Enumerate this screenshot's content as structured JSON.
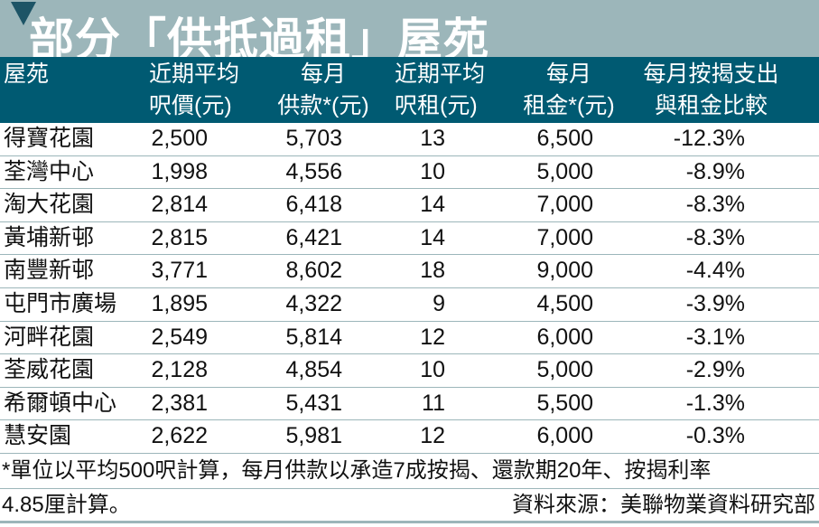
{
  "title": "部分「供抵過租」屋苑",
  "colors": {
    "title_band": "#9cb6ba",
    "header_band": "#005a72",
    "triangle": "#1d5466"
  },
  "headers": [
    [
      "屋苑",
      ""
    ],
    [
      "近期平均",
      "呎價(元)"
    ],
    [
      "每月",
      "供款*(元)"
    ],
    [
      "近期平均",
      "呎租(元)"
    ],
    [
      "每月",
      "租金*(元)"
    ],
    [
      "每月按揭支出",
      "與租金比較"
    ]
  ],
  "chart_data": {
    "type": "table",
    "title": "部分「供抵過租」屋苑",
    "columns": [
      "屋苑",
      "近期平均呎價(元)",
      "每月供款*(元)",
      "近期平均呎租(元)",
      "每月租金*(元)",
      "每月按揭支出與租金比較"
    ],
    "rows": [
      [
        "得寶花園",
        "2,500",
        "5,703",
        "13",
        "6,500",
        "-12.3%"
      ],
      [
        "荃灣中心",
        "1,998",
        "4,556",
        "10",
        "5,000",
        "-8.9%"
      ],
      [
        "淘大花園",
        "2,814",
        "6,418",
        "14",
        "7,000",
        "-8.3%"
      ],
      [
        "黃埔新邨",
        "2,815",
        "6,421",
        "14",
        "7,000",
        "-8.3%"
      ],
      [
        "南豐新邨",
        "3,771",
        "8,602",
        "18",
        "9,000",
        "-4.4%"
      ],
      [
        "屯門市廣場",
        "1,895",
        "4,322",
        "9",
        "4,500",
        "-3.9%"
      ],
      [
        "河畔花園",
        "2,549",
        "5,814",
        "12",
        "6,000",
        "-3.1%"
      ],
      [
        "荃威花園",
        "2,128",
        "4,854",
        "10",
        "5,000",
        "-2.9%"
      ],
      [
        "希爾頓中心",
        "2,381",
        "5,431",
        "11",
        "5,500",
        "-1.3%"
      ],
      [
        "慧安園",
        "2,622",
        "5,981",
        "12",
        "6,000",
        "-0.3%"
      ]
    ]
  },
  "footnote_line1": "*單位以平均500呎計算，每月供款以承造7成按揭、還款期20年、按揭利率",
  "footnote_line2": "4.85厘計算。",
  "source": "資料來源：美聯物業資料研究部"
}
